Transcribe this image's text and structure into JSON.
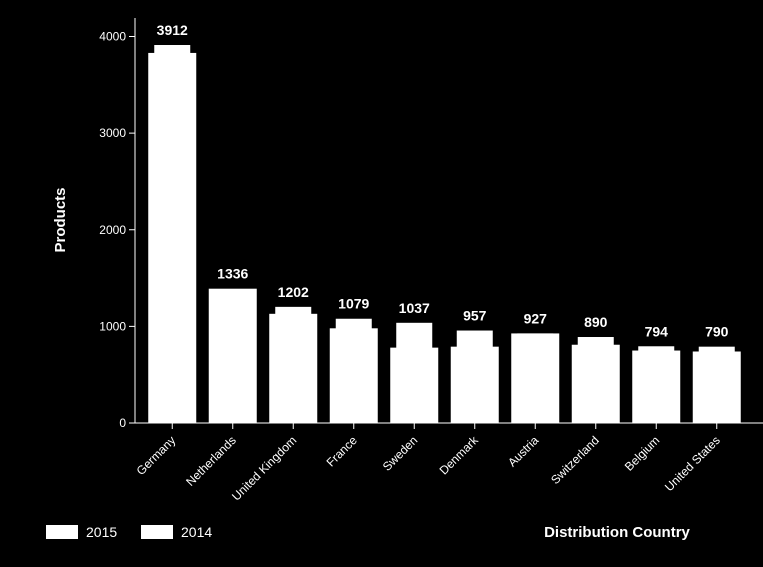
{
  "chart_data": {
    "type": "bar",
    "title": "",
    "xlabel": "Distribution Country",
    "ylabel": "Products",
    "ylim": [
      0,
      4000
    ],
    "yticks": [
      0,
      1000,
      2000,
      3000,
      4000
    ],
    "grid": false,
    "legend_position": "bottom-left",
    "categories": [
      "Germany",
      "Netherlands",
      "United Kingdom",
      "France",
      "Sweden",
      "Denmark",
      "Austria",
      "Switzerland",
      "Belgium",
      "United States"
    ],
    "series": [
      {
        "name": "2015",
        "values": [
          3912,
          1336,
          1202,
          1079,
          1037,
          957,
          927,
          890,
          794,
          790
        ],
        "color": "#ffffff"
      },
      {
        "name": "2014",
        "values": [
          3830,
          1390,
          1130,
          980,
          780,
          790,
          927,
          810,
          750,
          740
        ],
        "color": "#ffffff"
      }
    ],
    "data_labels": [
      "3912",
      "1336",
      "1202",
      "1079",
      "1037",
      "957",
      "927",
      "890",
      "794",
      "790"
    ]
  },
  "colors": {
    "background": "#000000",
    "foreground": "#ffffff"
  }
}
